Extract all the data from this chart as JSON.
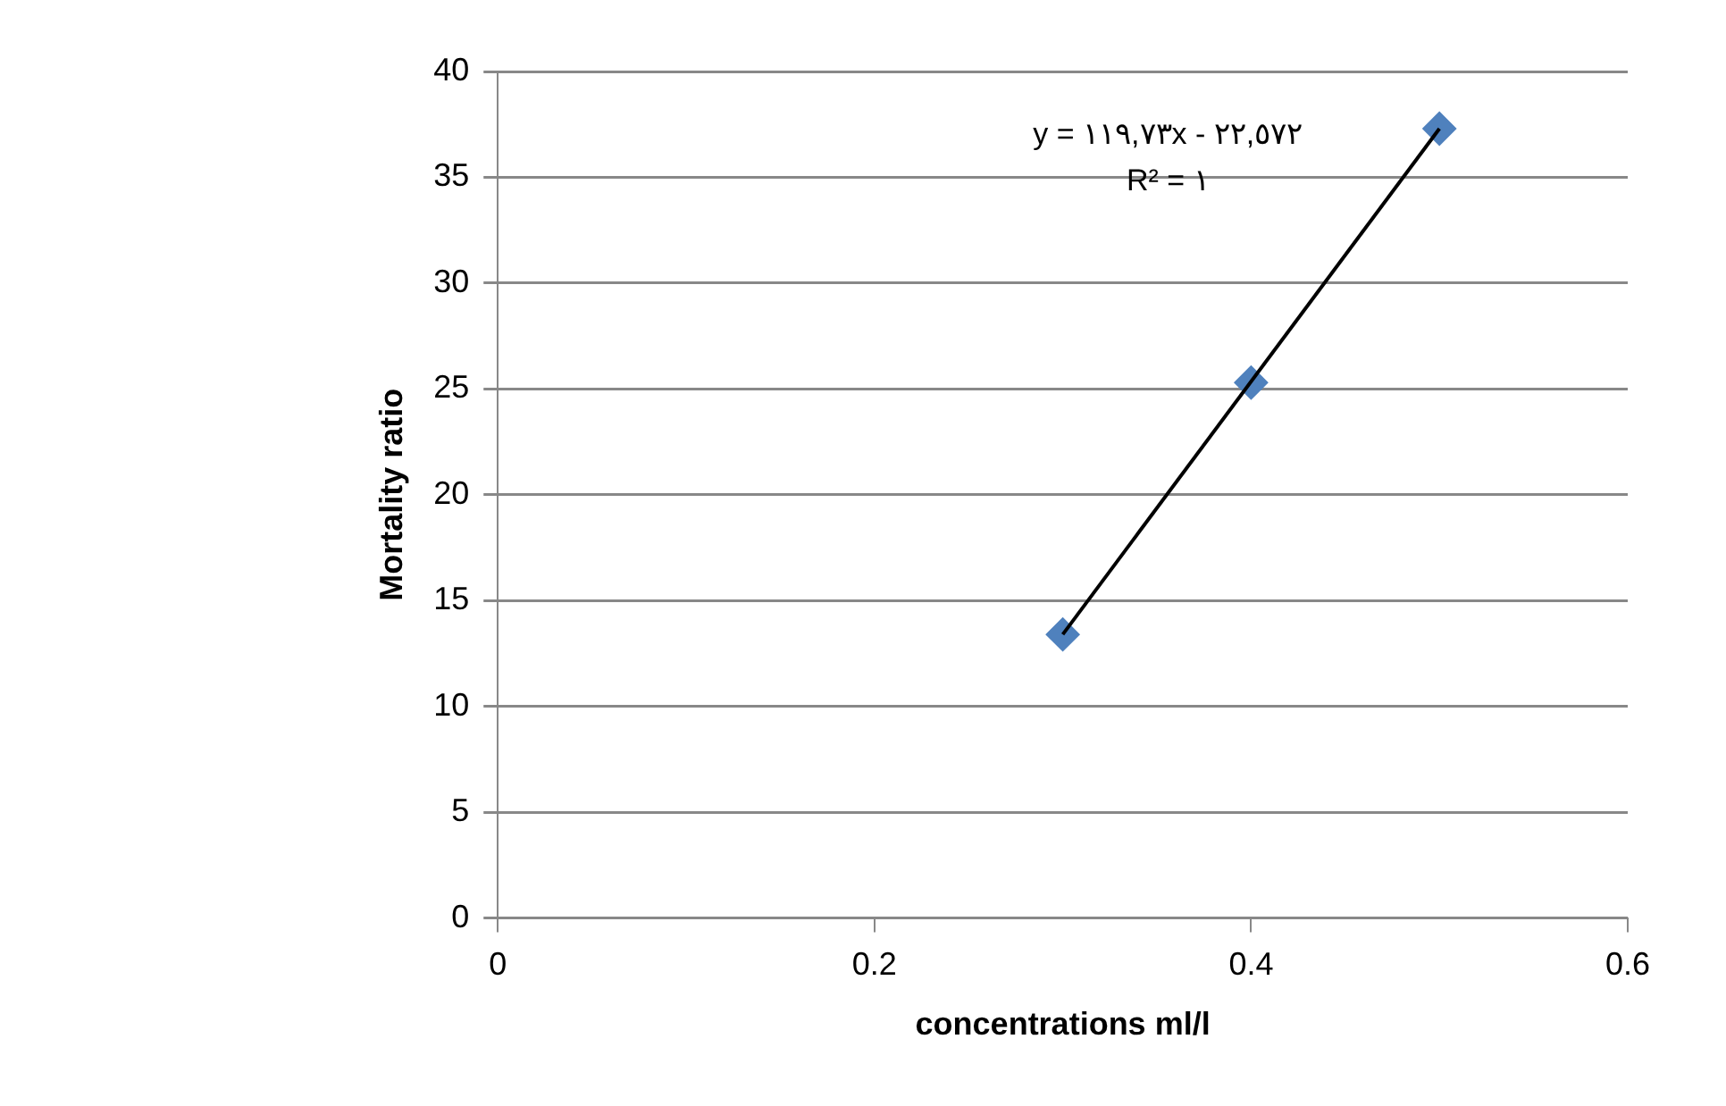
{
  "chart_data": {
    "type": "scatter",
    "xlabel": "concentrations ml/l",
    "ylabel": "Mortality ratio",
    "x": [
      0.3,
      0.4,
      0.5
    ],
    "series": [
      {
        "color": "#4f81bd",
        "marker": "diamond",
        "values": [
          13.4,
          25.3,
          37.3
        ]
      },
      {
        "type": "line",
        "color": "#000000",
        "marker": "none",
        "x": [
          0.3,
          0.5
        ],
        "values": [
          13.4,
          37.3
        ]
      }
    ],
    "xlim": [
      0,
      0.6
    ],
    "xticks": [
      0,
      0.2,
      0.4,
      0.6
    ],
    "ylim": [
      0,
      40
    ],
    "yticks": [
      0,
      5,
      10,
      15,
      20,
      25,
      30,
      35,
      40
    ],
    "grid": "y",
    "legend": false,
    "annotations": [
      "y = ١١٩,٧٣x - ٢٢,٥٧٢",
      "R² = ١"
    ]
  }
}
